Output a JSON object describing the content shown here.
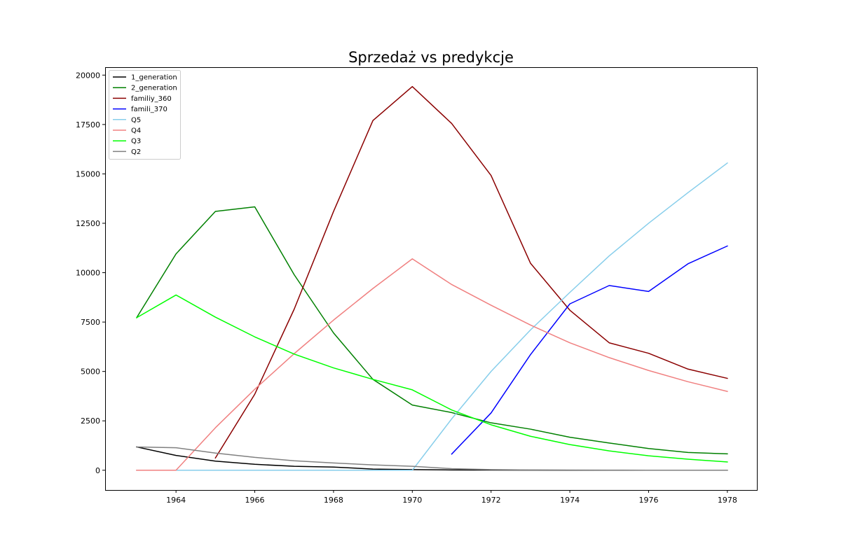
{
  "chart_data": {
    "type": "line",
    "title": "Sprzedaż vs predykcje",
    "xlabel": "",
    "ylabel": "",
    "xlim": [
      1962.2,
      1978.75
    ],
    "ylim": [
      -1000,
      20400
    ],
    "xticks": [
      1964,
      1966,
      1968,
      1970,
      1972,
      1974,
      1976,
      1978
    ],
    "yticks": [
      0,
      2500,
      5000,
      7500,
      10000,
      12500,
      15000,
      17500,
      20000
    ],
    "grid": false,
    "legend_position": "top-left",
    "series": [
      {
        "name": "1_generation",
        "color": "#000000",
        "x": [
          1963,
          1964,
          1965,
          1966,
          1967,
          1968,
          1969,
          1970,
          1971,
          1972,
          1973,
          1974,
          1975,
          1976,
          1977,
          1978
        ],
        "y": [
          1180,
          750,
          460,
          300,
          200,
          160,
          60,
          30,
          15,
          8,
          5,
          3,
          2,
          1,
          0,
          0
        ]
      },
      {
        "name": "2_generation",
        "color": "#008000",
        "x": [
          1963,
          1964,
          1965,
          1966,
          1967,
          1968,
          1969,
          1970,
          1971,
          1972,
          1973,
          1974,
          1975,
          1976,
          1977,
          1978
        ],
        "y": [
          7720,
          10950,
          13100,
          13330,
          9900,
          6950,
          4600,
          3300,
          2920,
          2400,
          2080,
          1670,
          1380,
          1100,
          900,
          830
        ]
      },
      {
        "name": "familiy_360",
        "color": "#8b0000",
        "x": [
          1965,
          1966,
          1967,
          1968,
          1969,
          1970,
          1971,
          1972,
          1973,
          1974,
          1975,
          1976,
          1977,
          1978
        ],
        "y": [
          620,
          3850,
          8150,
          13100,
          17700,
          19420,
          17550,
          14920,
          10480,
          8100,
          6450,
          5920,
          5120,
          4650
        ]
      },
      {
        "name": "famili_370",
        "color": "#0000ff",
        "x": [
          1971,
          1972,
          1973,
          1974,
          1975,
          1976,
          1977,
          1978
        ],
        "y": [
          820,
          2900,
          5850,
          8420,
          9350,
          9050,
          10450,
          11350
        ]
      },
      {
        "name": "Q5",
        "color": "#87ceeb",
        "x": [
          1963,
          1964,
          1965,
          1966,
          1967,
          1968,
          1969,
          1970,
          1971,
          1972,
          1973,
          1974,
          1975,
          1976,
          1977,
          1978
        ],
        "y": [
          0,
          0,
          0,
          0,
          0,
          0,
          0,
          0,
          2600,
          5000,
          7100,
          9000,
          10850,
          12500,
          14050,
          15550
        ]
      },
      {
        "name": "Q4",
        "color": "#f08080",
        "x": [
          1963,
          1964,
          1965,
          1966,
          1967,
          1968,
          1969,
          1970,
          1971,
          1972,
          1973,
          1974,
          1975,
          1976,
          1977,
          1978
        ],
        "y": [
          0,
          0,
          2150,
          4100,
          5900,
          7600,
          9200,
          10700,
          9400,
          8350,
          7350,
          6450,
          5700,
          5050,
          4480,
          3990
        ]
      },
      {
        "name": "Q3",
        "color": "#00ff00",
        "x": [
          1963,
          1964,
          1965,
          1966,
          1967,
          1968,
          1969,
          1970,
          1971,
          1972,
          1973,
          1974,
          1975,
          1976,
          1977,
          1978
        ],
        "y": [
          7720,
          8870,
          7750,
          6750,
          5880,
          5180,
          4600,
          4070,
          3050,
          2300,
          1720,
          1300,
          980,
          730,
          560,
          420
        ]
      },
      {
        "name": "Q2",
        "color": "#808080",
        "x": [
          1963,
          1964,
          1965,
          1966,
          1967,
          1968,
          1969,
          1970,
          1971,
          1972,
          1973,
          1974,
          1975,
          1976,
          1977,
          1978
        ],
        "y": [
          1180,
          1140,
          870,
          650,
          480,
          370,
          270,
          200,
          80,
          30,
          15,
          10,
          5,
          2,
          1,
          0
        ]
      }
    ]
  }
}
